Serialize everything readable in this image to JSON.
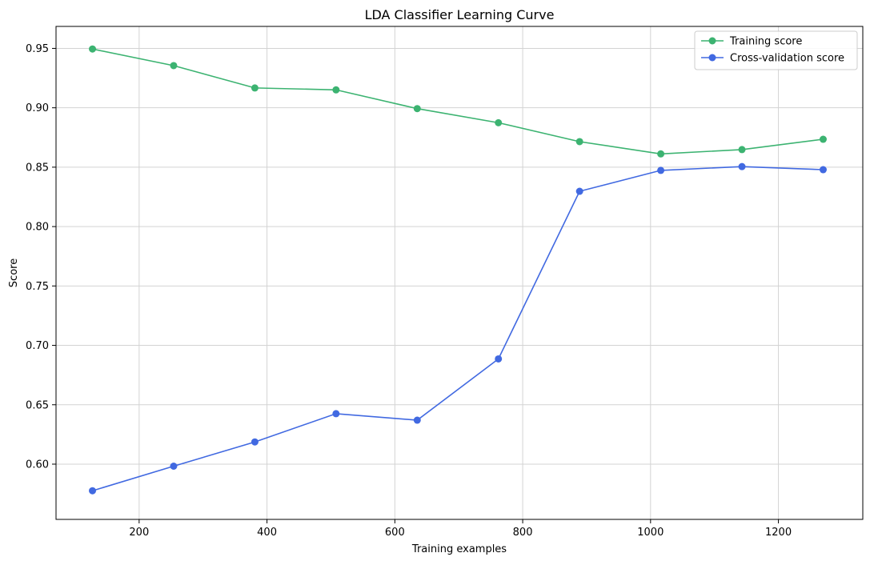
{
  "chart_data": {
    "type": "line",
    "title": "LDA Classifier Learning Curve",
    "xlabel": "Training examples",
    "ylabel": "Score",
    "xlim": [
      70,
      1332
    ],
    "ylim": [
      0.5535,
      0.9685
    ],
    "xticks": [
      200,
      400,
      600,
      800,
      1000,
      1200
    ],
    "yticks": [
      0.6,
      0.65,
      0.7,
      0.75,
      0.8,
      0.85,
      0.9,
      0.95
    ],
    "grid": true,
    "legend_position": "top-right",
    "x": [
      127,
      254,
      381,
      508,
      635,
      762,
      889,
      1016,
      1143,
      1270
    ],
    "series": [
      {
        "name": "Training score",
        "color": "#3cb371",
        "values": [
          0.9495,
          0.9355,
          0.9167,
          0.9151,
          0.8993,
          0.8874,
          0.8715,
          0.8612,
          0.8648,
          0.8735
        ]
      },
      {
        "name": "Cross-validation score",
        "color": "#4169e1",
        "values": [
          0.5776,
          0.5983,
          0.6187,
          0.6425,
          0.637,
          0.6886,
          0.8297,
          0.8473,
          0.8505,
          0.8479
        ]
      }
    ]
  }
}
